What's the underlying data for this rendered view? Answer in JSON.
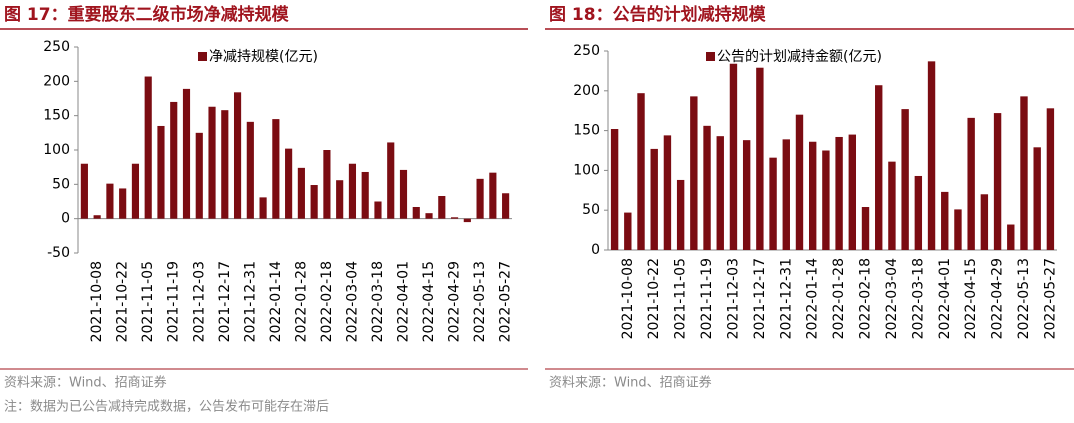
{
  "chart_data": [
    {
      "type": "bar",
      "title": "图 17：重要股东二级市场净减持规模",
      "legend": "净减持规模(亿元)",
      "color": "#7b0c12",
      "categories": [
        null,
        "2021-10-08",
        null,
        "2021-10-22",
        null,
        "2021-11-05",
        null,
        "2021-11-19",
        null,
        "2021-12-03",
        null,
        "2021-12-17",
        null,
        "2021-12-31",
        null,
        "2022-01-14",
        null,
        "2022-01-28",
        null,
        "2022-02-18",
        null,
        "2022-03-04",
        null,
        "2022-03-18",
        null,
        "2022-04-01",
        null,
        "2022-04-15",
        null,
        "2022-04-29",
        null,
        "2022-05-13",
        null,
        "2022-05-27"
      ],
      "values": [
        80,
        5,
        51,
        44,
        80,
        207,
        135,
        170,
        189,
        125,
        163,
        158,
        184,
        141,
        31,
        145,
        102,
        74,
        49,
        100,
        56,
        80,
        68,
        25,
        111,
        71,
        17,
        8,
        33,
        2,
        -5,
        58,
        67,
        37
      ],
      "ylim": [
        -50,
        250
      ],
      "yticks": [
        -50,
        0,
        50,
        100,
        150,
        200,
        250
      ],
      "grid": false,
      "source": "资料来源：Wind、招商证券"
    },
    {
      "type": "bar",
      "title": "图 18：公告的计划减持规模",
      "legend": "公告的计划减持金额(亿元)",
      "color": "#7b0c12",
      "categories": [
        null,
        "2021-10-08",
        null,
        "2021-10-22",
        null,
        "2021-11-05",
        null,
        "2021-11-19",
        null,
        "2021-12-03",
        null,
        "2021-12-17",
        null,
        "2021-12-31",
        null,
        "2022-01-14",
        null,
        "2022-01-28",
        null,
        "2022-02-18",
        null,
        "2022-03-04",
        null,
        "2022-03-18",
        null,
        "2022-04-01",
        null,
        "2022-04-15",
        null,
        "2022-04-29",
        null,
        "2022-05-13",
        null,
        "2022-05-27"
      ],
      "values": [
        152,
        47,
        197,
        127,
        144,
        88,
        193,
        156,
        143,
        234,
        138,
        229,
        116,
        139,
        170,
        136,
        125,
        142,
        145,
        54,
        207,
        111,
        177,
        93,
        237,
        73,
        51,
        166,
        70,
        172,
        32,
        193,
        129,
        178
      ],
      "ylim": [
        0,
        250
      ],
      "yticks": [
        0,
        50,
        100,
        150,
        200,
        250
      ],
      "grid": false,
      "source": "资料来源：Wind、招商证券"
    }
  ],
  "note": "注：数据为已公告减持完成数据，公告发布可能存在滞后"
}
